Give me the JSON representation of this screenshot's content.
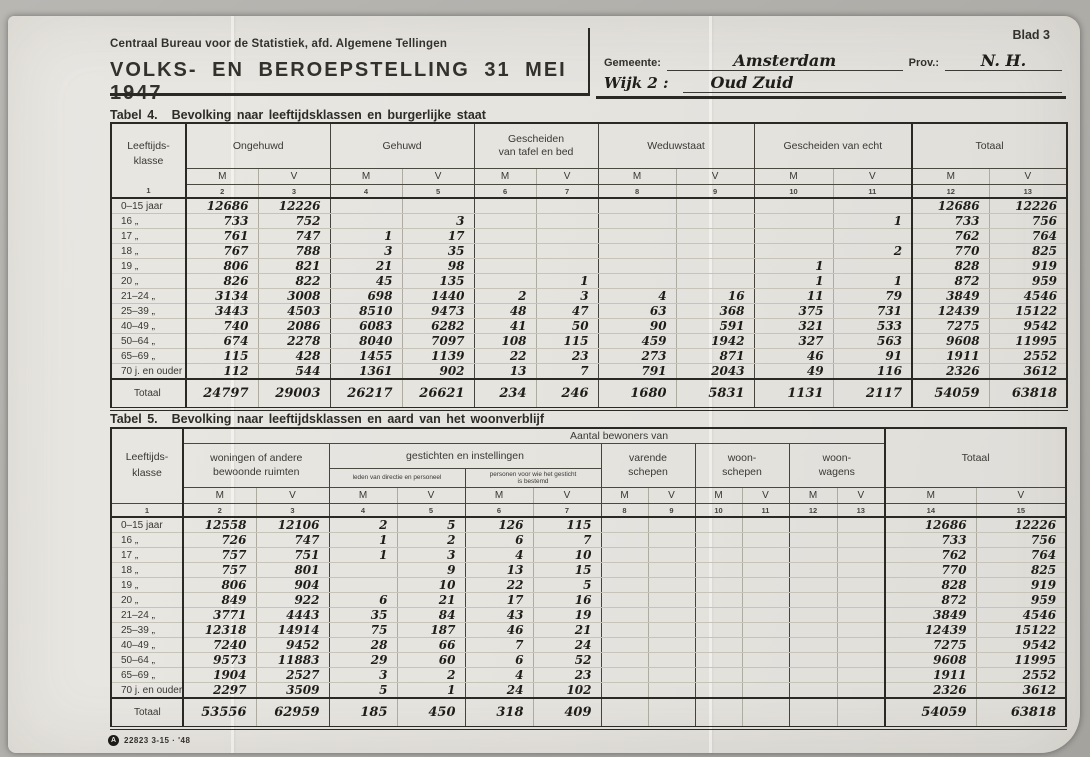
{
  "scan": {
    "blad_label": "Blad 3",
    "org": "Centraal Bureau voor de Statistiek, afd. Algemene Tellingen",
    "title": "VOLKS- EN BEROEPSTELLING 31 MEI 1947",
    "gemeente_label": "Gemeente:",
    "gemeente": "Amsterdam",
    "prov_label": "Prov.:",
    "prov": "N. H.",
    "wijk_label": "Wijk 2 :",
    "wijk": "Oud Zuid",
    "footer_code": "22823 3-15 · '48",
    "footer_logo": "A"
  },
  "table4": {
    "label": "Tabel 4.",
    "title": "Bevolking naar leeftijdsklassen en burgerlijke staat",
    "col1": "Leeftijds-\nklasse",
    "groups": [
      "Ongehuwd",
      "Gehuwd",
      "Gescheiden\nvan tafel en bed",
      "Weduwstaat",
      "Gescheiden van echt",
      "Totaal"
    ],
    "m_label": "M",
    "v_label": "V",
    "col_numbers": [
      "1",
      "2",
      "3",
      "4",
      "5",
      "6",
      "7",
      "8",
      "9",
      "10",
      "11",
      "12",
      "13"
    ],
    "rows": [
      {
        "label": "0–15 jaar",
        "values": [
          "12686",
          "12226",
          "",
          "",
          "",
          "",
          "",
          "",
          "",
          "",
          "12686",
          "12226"
        ]
      },
      {
        "label": "16 „",
        "values": [
          "733",
          "752",
          "",
          "3",
          "",
          "",
          "",
          "",
          "",
          "1",
          "733",
          "756"
        ]
      },
      {
        "label": "17 „",
        "values": [
          "761",
          "747",
          "1",
          "17",
          "",
          "",
          "",
          "",
          "",
          "",
          "762",
          "764"
        ]
      },
      {
        "label": "18 „",
        "values": [
          "767",
          "788",
          "3",
          "35",
          "",
          "",
          "",
          "",
          "",
          "2",
          "770",
          "825"
        ]
      },
      {
        "label": "19 „",
        "values": [
          "806",
          "821",
          "21",
          "98",
          "",
          "",
          "",
          "",
          "1",
          "",
          "828",
          "919"
        ]
      },
      {
        "label": "20 „",
        "values": [
          "826",
          "822",
          "45",
          "135",
          "",
          "1",
          "",
          "",
          "1",
          "1",
          "872",
          "959"
        ]
      },
      {
        "label": "21–24 „",
        "values": [
          "3134",
          "3008",
          "698",
          "1440",
          "2",
          "3",
          "4",
          "16",
          "11",
          "79",
          "3849",
          "4546"
        ]
      },
      {
        "label": "25–39 „",
        "values": [
          "3443",
          "4503",
          "8510",
          "9473",
          "48",
          "47",
          "63",
          "368",
          "375",
          "731",
          "12439",
          "15122"
        ]
      },
      {
        "label": "40–49 „",
        "values": [
          "740",
          "2086",
          "6083",
          "6282",
          "41",
          "50",
          "90",
          "591",
          "321",
          "533",
          "7275",
          "9542"
        ]
      },
      {
        "label": "50–64 „",
        "values": [
          "674",
          "2278",
          "8040",
          "7097",
          "108",
          "115",
          "459",
          "1942",
          "327",
          "563",
          "9608",
          "11995"
        ]
      },
      {
        "label": "65–69 „",
        "values": [
          "115",
          "428",
          "1455",
          "1139",
          "22",
          "23",
          "273",
          "871",
          "46",
          "91",
          "1911",
          "2552"
        ]
      },
      {
        "label": "70 j. en ouder",
        "values": [
          "112",
          "544",
          "1361",
          "902",
          "13",
          "7",
          "791",
          "2043",
          "49",
          "116",
          "2326",
          "3612"
        ]
      }
    ],
    "total_label": "Totaal",
    "total_values": [
      "24797",
      "29003",
      "26217",
      "26621",
      "234",
      "246",
      "1680",
      "5831",
      "1131",
      "2117",
      "54059",
      "63818"
    ]
  },
  "table5": {
    "label": "Tabel 5.",
    "title": "Bevolking naar leeftijdsklassen en aard van het woonverblijf",
    "span_header": "Aantal bewoners van",
    "col1": "Leeftijds-\nklasse",
    "groups": [
      "woningen of andere\nbewoonde ruimten",
      "gestichten en instellingen",
      "leden van directie en personeel",
      "personen voor wie het gesticht\nis bestemd",
      "varende\nschepen",
      "woon-\nschepen",
      "woon-\nwagens",
      "Totaal"
    ],
    "m_label": "M",
    "v_label": "V",
    "col_numbers": [
      "1",
      "2",
      "3",
      "4",
      "5",
      "6",
      "7",
      "8",
      "9",
      "10",
      "11",
      "12",
      "13",
      "14",
      "15"
    ],
    "rows": [
      {
        "label": "0–15 jaar",
        "values": [
          "12558",
          "12106",
          "2",
          "5",
          "126",
          "115",
          "",
          "",
          "",
          "",
          "",
          "",
          "12686",
          "12226"
        ]
      },
      {
        "label": "16 „",
        "values": [
          "726",
          "747",
          "1",
          "2",
          "6",
          "7",
          "",
          "",
          "",
          "",
          "",
          "",
          "733",
          "756"
        ]
      },
      {
        "label": "17 „",
        "values": [
          "757",
          "751",
          "1",
          "3",
          "4",
          "10",
          "",
          "",
          "",
          "",
          "",
          "",
          "762",
          "764"
        ]
      },
      {
        "label": "18 „",
        "values": [
          "757",
          "801",
          "",
          "9",
          "13",
          "15",
          "",
          "",
          "",
          "",
          "",
          "",
          "770",
          "825"
        ]
      },
      {
        "label": "19 „",
        "values": [
          "806",
          "904",
          "",
          "10",
          "22",
          "5",
          "",
          "",
          "",
          "",
          "",
          "",
          "828",
          "919"
        ]
      },
      {
        "label": "20 „",
        "values": [
          "849",
          "922",
          "6",
          "21",
          "17",
          "16",
          "",
          "",
          "",
          "",
          "",
          "",
          "872",
          "959"
        ]
      },
      {
        "label": "21–24 „",
        "values": [
          "3771",
          "4443",
          "35",
          "84",
          "43",
          "19",
          "",
          "",
          "",
          "",
          "",
          "",
          "3849",
          "4546"
        ]
      },
      {
        "label": "25–39 „",
        "values": [
          "12318",
          "14914",
          "75",
          "187",
          "46",
          "21",
          "",
          "",
          "",
          "",
          "",
          "",
          "12439",
          "15122"
        ]
      },
      {
        "label": "40–49 „",
        "values": [
          "7240",
          "9452",
          "28",
          "66",
          "7",
          "24",
          "",
          "",
          "",
          "",
          "",
          "",
          "7275",
          "9542"
        ]
      },
      {
        "label": "50–64 „",
        "values": [
          "9573",
          "11883",
          "29",
          "60",
          "6",
          "52",
          "",
          "",
          "",
          "",
          "",
          "",
          "9608",
          "11995"
        ]
      },
      {
        "label": "65–69 „",
        "values": [
          "1904",
          "2527",
          "3",
          "2",
          "4",
          "23",
          "",
          "",
          "",
          "",
          "",
          "",
          "1911",
          "2552"
        ]
      },
      {
        "label": "70 j. en ouder",
        "values": [
          "2297",
          "3509",
          "5",
          "1",
          "24",
          "102",
          "",
          "",
          "",
          "",
          "",
          "",
          "2326",
          "3612"
        ]
      }
    ],
    "total_label": "Totaal",
    "total_values": [
      "53556",
      "62959",
      "185",
      "450",
      "318",
      "409",
      "",
      "",
      "",
      "",
      "",
      "",
      "54059",
      "63818"
    ]
  }
}
